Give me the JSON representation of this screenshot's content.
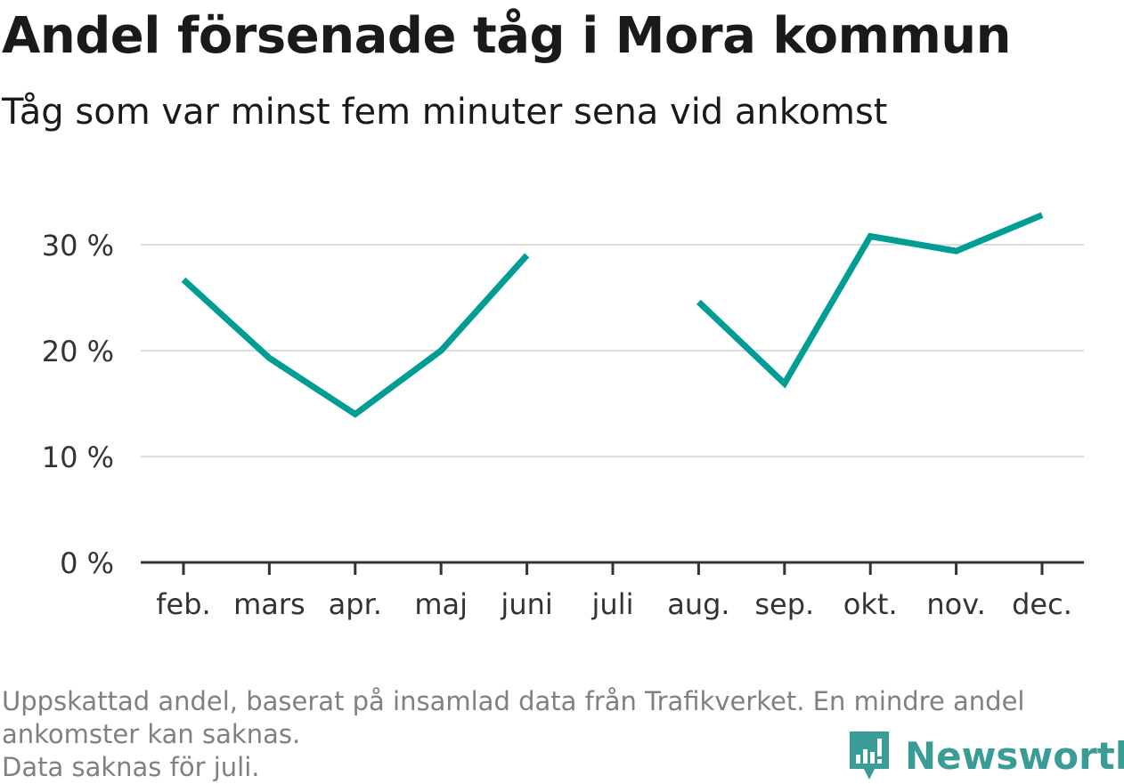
{
  "chart_data": {
    "type": "line",
    "title": "Andel försenade tåg i Mora kommun",
    "subtitle": "Tåg som var minst fem minuter sena vid ankomst",
    "categories": [
      "feb.",
      "mars",
      "apr.",
      "maj",
      "juni",
      "juli",
      "aug.",
      "sep.",
      "okt.",
      "nov.",
      "dec."
    ],
    "series": [
      {
        "values": [
          26.7,
          19.3,
          14.0,
          20.0,
          29.0,
          null,
          24.6,
          16.9,
          30.8,
          29.4,
          32.8
        ]
      }
    ],
    "y_ticks": [
      0,
      10,
      20,
      30
    ],
    "y_tick_labels": [
      "0 %",
      "10 %",
      "20 %",
      "30 %"
    ],
    "ylim": [
      0,
      33
    ],
    "grid": true,
    "colors": {
      "line": "#009d95",
      "grid": "#dddddd",
      "axis": "#333333"
    }
  },
  "footnote": {
    "line1": "Uppskattad andel, baserat på insamlad data från Trafikverket. En mindre andel",
    "line2": "ankomster kan saknas.",
    "line3": "Data saknas för juli."
  },
  "brand": {
    "name": "Newsworthy",
    "icon": "newsworthy-logo-icon",
    "color": "#3a9c96"
  }
}
